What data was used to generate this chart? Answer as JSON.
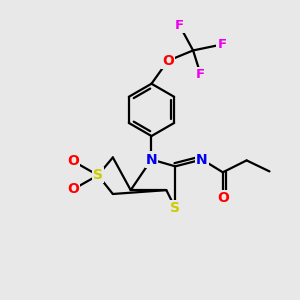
{
  "bg_color": "#e8e8e8",
  "atom_colors": {
    "C": "#000000",
    "N": "#0000ee",
    "S": "#cccc00",
    "O": "#ff0000",
    "F": "#ee00ee"
  },
  "bond_color": "#000000",
  "bond_width": 1.6,
  "figsize": [
    3.0,
    3.0
  ],
  "dpi": 100,
  "xlim": [
    0,
    10
  ],
  "ylim": [
    0,
    10
  ]
}
